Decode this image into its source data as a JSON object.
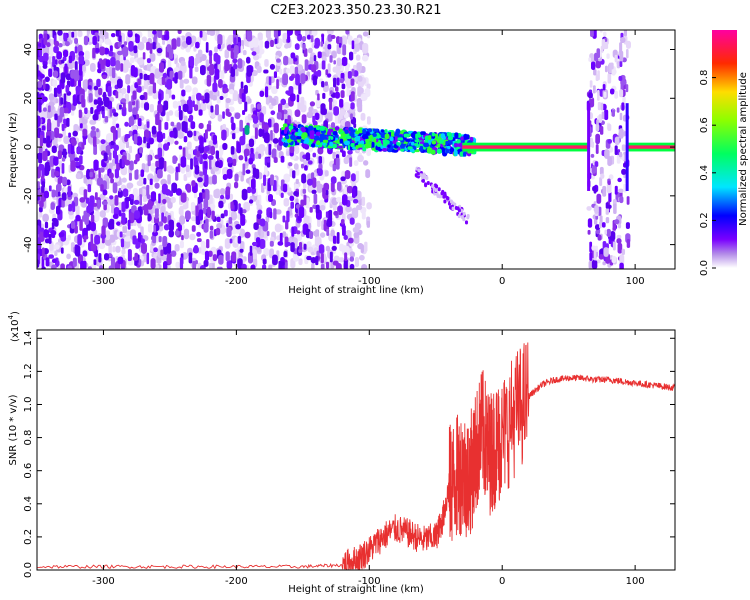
{
  "title": "C2E3.2023.350.23.30.R21",
  "chart_data": [
    {
      "type": "heatmap",
      "title": "C2E3.2023.350.23.30.R21",
      "xlabel": "Height of straight line (km)",
      "ylabel": "Frequency (Hz)",
      "xlim": [
        -350,
        130
      ],
      "ylim": [
        -50,
        48
      ],
      "xticks": [
        -300,
        -200,
        -100,
        0,
        100
      ],
      "yticks": [
        -40,
        -20,
        0,
        20,
        40
      ],
      "colorbar": {
        "label": "Normalized spectral amplitude",
        "ticks": [
          0.0,
          0.2,
          0.4,
          0.6,
          0.8
        ],
        "range": [
          0,
          1
        ],
        "colormap": "white-purple-blue-cyan-green-yellow-red-magenta"
      },
      "features": {
        "noise_band_x": [
          -350,
          -120
        ],
        "coherent_band_start_x": -165,
        "coherent_band_end_x": 130,
        "gap_x": [
          65,
          95
        ],
        "tail_band": {
          "x": [
            -65,
            -25
          ],
          "y_from": -10,
          "y_to": -30
        }
      }
    },
    {
      "type": "line",
      "xlabel": "Height of straight line (km)",
      "ylabel": "SNR (10 * v/v)",
      "y_multiplier": "(x10",
      "y_multiplier_exp": "4",
      "y_multiplier_close": ")",
      "xlim": [
        -350,
        130
      ],
      "ylim": [
        0.0,
        1.45
      ],
      "xticks": [
        -300,
        -200,
        -100,
        0,
        100
      ],
      "yticks": [
        "0.0",
        "0.2",
        "0.4",
        "0.6",
        "0.8",
        "1.0",
        "1.2",
        "1.4"
      ],
      "line_color": "#e83030",
      "series": [
        {
          "x": [
            -350,
            -300,
            -250,
            -200,
            -150,
            -120,
            -110,
            -100,
            -90,
            -80,
            -70,
            -60,
            -50,
            -45,
            -40,
            -35,
            -30,
            -25,
            -20,
            -15,
            -10,
            -5,
            0,
            10,
            20,
            30,
            40,
            50,
            60,
            70,
            80,
            90,
            100,
            110,
            120,
            130
          ],
          "values": [
            0.02,
            0.02,
            0.02,
            0.02,
            0.02,
            0.03,
            0.06,
            0.12,
            0.2,
            0.25,
            0.22,
            0.18,
            0.2,
            0.3,
            0.5,
            0.55,
            0.6,
            0.55,
            0.7,
            0.85,
            0.7,
            0.75,
            0.8,
            0.95,
            1.05,
            1.12,
            1.15,
            1.16,
            1.16,
            1.15,
            1.15,
            1.14,
            1.13,
            1.12,
            1.11,
            1.1
          ]
        }
      ]
    }
  ]
}
